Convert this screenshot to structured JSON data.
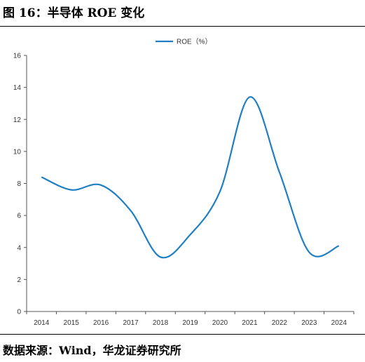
{
  "figure": {
    "title": "图 16：半导体 ROE 变化",
    "source": "数据来源：Wind，华龙证券研究所"
  },
  "chart_data": {
    "type": "line",
    "title": "",
    "xlabel": "",
    "ylabel": "",
    "categories": [
      "2014",
      "2015",
      "2016",
      "2017",
      "2018",
      "2019",
      "2020",
      "2021",
      "2022",
      "2023",
      "2024"
    ],
    "ylim": [
      0,
      16
    ],
    "yticks": [
      0,
      2,
      4,
      6,
      8,
      10,
      12,
      14,
      16
    ],
    "grid": false,
    "legend_position": "top-center",
    "series": [
      {
        "name": "ROE（%）",
        "color": "#1f7fc4",
        "values": [
          8.4,
          7.6,
          7.9,
          6.3,
          3.4,
          4.8,
          7.5,
          13.4,
          8.7,
          3.7,
          4.1
        ]
      }
    ]
  }
}
